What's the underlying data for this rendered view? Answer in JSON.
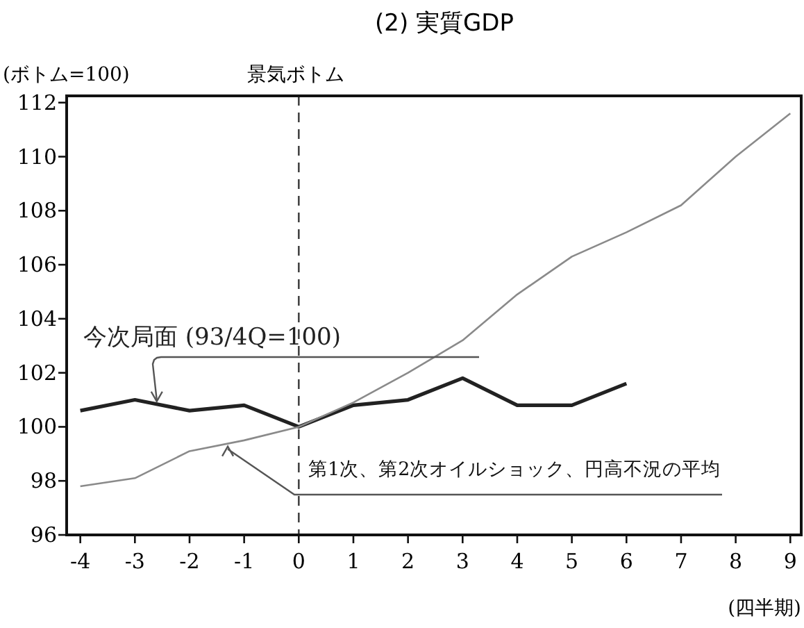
{
  "chart_data": {
    "type": "line",
    "title": "(2) 実質GDP",
    "ylabel": "(ボトム=100)",
    "xlabel": "(四半期)",
    "x": [
      -4,
      -3,
      -2,
      -1,
      0,
      1,
      2,
      3,
      4,
      5,
      6,
      7,
      8,
      9
    ],
    "xlim": [
      -4.25,
      9.2
    ],
    "ylim": [
      96,
      112.25
    ],
    "xticks": [
      -4,
      -3,
      -2,
      -1,
      0,
      1,
      2,
      3,
      4,
      5,
      6,
      7,
      8,
      9
    ],
    "yticks": [
      96,
      98,
      100,
      102,
      104,
      106,
      108,
      110,
      112
    ],
    "series": [
      {
        "name": "今次局面 (93/4Q=100)",
        "color": "#222222",
        "values": [
          100.6,
          101.0,
          100.6,
          100.8,
          100.0,
          100.8,
          101.0,
          101.8,
          100.8,
          100.8,
          101.6,
          null,
          null,
          null
        ]
      },
      {
        "name": "第1次、第2次オイルショック、円高不況の平均",
        "color": "#8a8a8a",
        "values": [
          97.8,
          98.1,
          99.1,
          99.5,
          100.0,
          100.9,
          102.0,
          103.2,
          104.9,
          106.3,
          107.2,
          108.2,
          110.0,
          111.6
        ]
      }
    ],
    "ref_lines": [
      {
        "axis": "x",
        "value": 0,
        "label": "景気ボトム",
        "line_style": "dashed",
        "color": "#444444"
      }
    ],
    "grid": false,
    "legend": false,
    "marker": "none",
    "line_style": "solid"
  }
}
